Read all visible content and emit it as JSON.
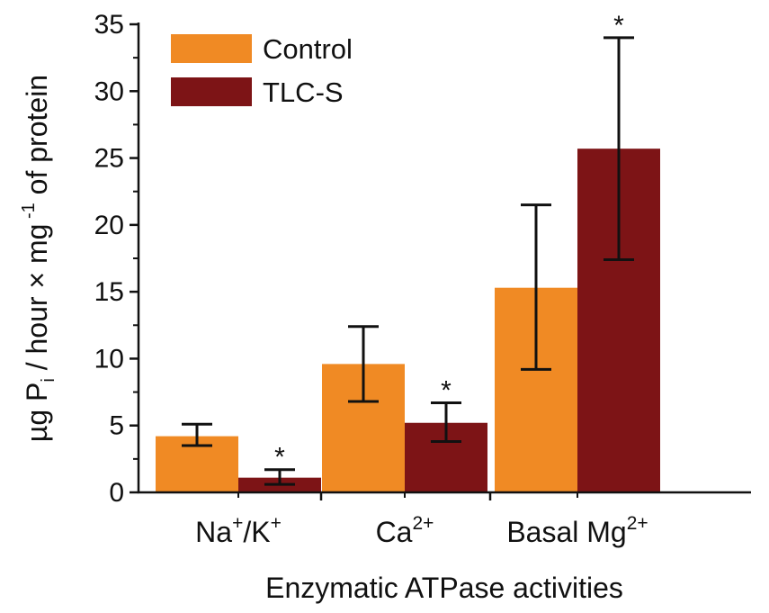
{
  "chart_data": {
    "type": "bar",
    "categories": [
      {
        "base": "Na",
        "sup1": "+",
        "mid": "/K",
        "sup2": "+"
      },
      {
        "base": "Ca",
        "sup1": "2+",
        "mid": "",
        "sup2": ""
      },
      {
        "base": "Basal Mg",
        "sup1": "2+",
        "mid": "",
        "sup2": ""
      }
    ],
    "series": [
      {
        "name": "Control",
        "color": "#f08a24",
        "values": [
          4.2,
          9.6,
          15.3
        ],
        "error_low": [
          3.5,
          6.8,
          9.2
        ],
        "error_high": [
          5.1,
          12.4,
          21.5
        ],
        "significance": [
          "",
          "",
          ""
        ]
      },
      {
        "name": "TLC-S",
        "color": "#7d1416",
        "values": [
          1.1,
          5.2,
          25.7
        ],
        "error_low": [
          0.6,
          3.8,
          17.4
        ],
        "error_high": [
          1.7,
          6.7,
          34.0
        ],
        "significance": [
          "*",
          "*",
          "*"
        ]
      }
    ],
    "ylim": [
      0,
      35
    ],
    "yticks": [
      "0",
      "5",
      "10",
      "15",
      "20",
      "25",
      "30",
      "35"
    ],
    "ylabel": {
      "part1": "µg P",
      "sub": "i",
      "part2": " / hour × mg",
      "sup": " -1",
      "part3": " of protein"
    },
    "xlabel": "Enzymatic ATPase activities",
    "legend_position": "top-left"
  }
}
